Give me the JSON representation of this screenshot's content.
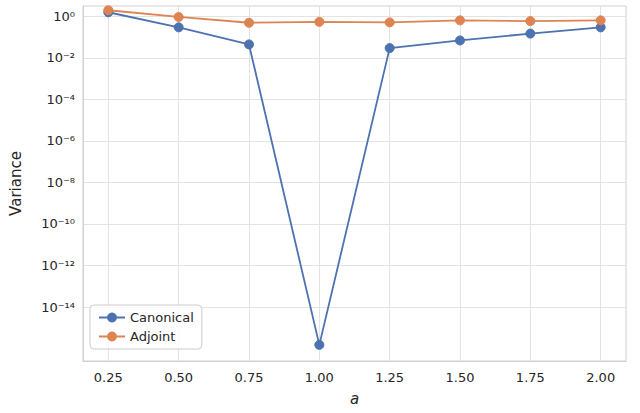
{
  "chart_data": {
    "type": "line",
    "x_label": "a",
    "y_label": "Variance",
    "x": [
      0.25,
      0.5,
      0.75,
      1.0,
      1.25,
      1.5,
      1.75,
      2.0
    ],
    "series": [
      {
        "name": "Canonical",
        "color": "#4c72b0",
        "marker": "circle",
        "values": [
          1.6,
          0.3,
          0.045,
          1.5e-16,
          0.03,
          0.07,
          0.15,
          0.3
        ]
      },
      {
        "name": "Adjoint",
        "color": "#dd8452",
        "marker": "circle",
        "values": [
          2.0,
          0.95,
          0.5,
          0.55,
          0.52,
          0.65,
          0.6,
          0.65
        ]
      }
    ],
    "xlim": [
      0.16,
      2.09
    ],
    "xticks": [
      0.25,
      {
        "value": 0.5,
        "label": "0.50"
      },
      0.75,
      {
        "value": 1.0,
        "label": "1.00"
      },
      1.25,
      {
        "value": 1.5,
        "label": "1.50"
      },
      1.75,
      {
        "value": 2.0,
        "label": "2.00"
      }
    ],
    "ylim": [
      2.5e-17,
      3.2
    ],
    "yticks": [
      {
        "value": 1,
        "label": "10⁰"
      },
      {
        "value": 0.01,
        "label": "10⁻²"
      },
      {
        "value": 0.0001,
        "label": "10⁻⁴"
      },
      {
        "value": 1e-06,
        "label": "10⁻⁶"
      },
      {
        "value": 1e-08,
        "label": "10⁻⁸"
      },
      {
        "value": 1e-10,
        "label": "10⁻¹⁰"
      },
      {
        "value": 1e-12,
        "label": "10⁻¹²"
      },
      {
        "value": 1e-14,
        "label": "10⁻¹⁴"
      }
    ],
    "log": "y",
    "grid": true,
    "legend": "lower left"
  }
}
